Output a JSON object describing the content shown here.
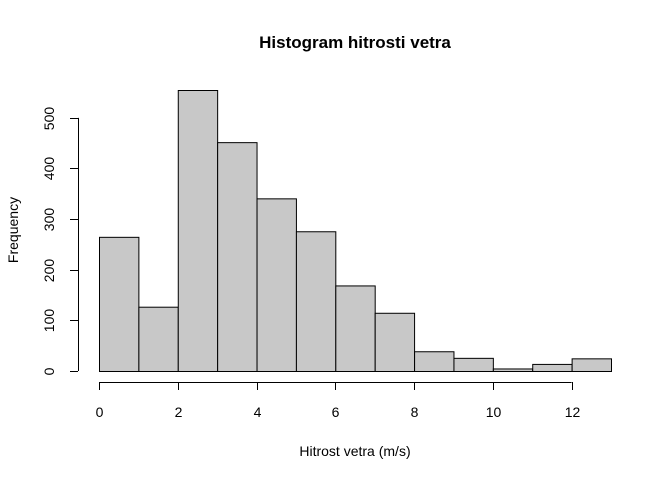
{
  "chart_data": {
    "type": "bar",
    "title": "Histogram hitrosti vetra",
    "xlabel": "Hitrost vetra (m/s)",
    "ylabel": "Frequency",
    "bins": [
      {
        "from": 0,
        "to": 1,
        "value": 265
      },
      {
        "from": 1,
        "to": 2,
        "value": 127
      },
      {
        "from": 2,
        "to": 3,
        "value": 555
      },
      {
        "from": 3,
        "to": 4,
        "value": 452
      },
      {
        "from": 4,
        "to": 5,
        "value": 341
      },
      {
        "from": 5,
        "to": 6,
        "value": 276
      },
      {
        "from": 6,
        "to": 7,
        "value": 169
      },
      {
        "from": 7,
        "to": 8,
        "value": 115
      },
      {
        "from": 8,
        "to": 9,
        "value": 39
      },
      {
        "from": 9,
        "to": 10,
        "value": 26
      },
      {
        "from": 10,
        "to": 11,
        "value": 5
      },
      {
        "from": 11,
        "to": 12,
        "value": 14
      },
      {
        "from": 12,
        "to": 13,
        "value": 25
      }
    ],
    "xlim": [
      0,
      13
    ],
    "ylim": [
      0,
      555
    ],
    "x_ticks": [
      0,
      2,
      4,
      6,
      8,
      10,
      12
    ],
    "y_ticks": [
      0,
      100,
      200,
      300,
      400,
      500
    ],
    "bar_color": "#c8c8c8",
    "grid": false,
    "legend": "none"
  }
}
